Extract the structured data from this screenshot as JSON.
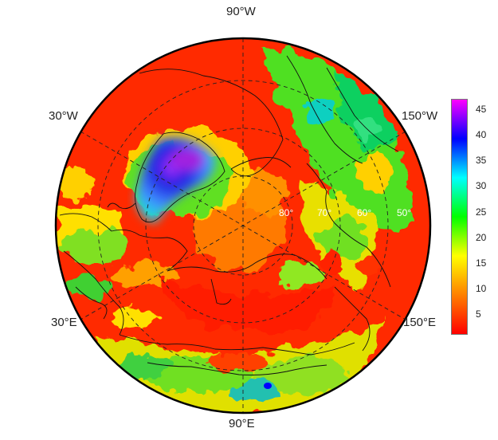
{
  "map": {
    "projection": "north-polar-stereographic",
    "longitude_labels": [
      "90°W",
      "30°W",
      "150°W",
      "30°E",
      "150°E",
      "90°E"
    ],
    "latitude_labels": [
      "80°",
      "70°",
      "60°",
      "50°"
    ],
    "colorbar": {
      "ticks": [
        "5",
        "10",
        "15",
        "20",
        "25",
        "30",
        "35",
        "40",
        "45"
      ],
      "range": [
        1,
        47
      ],
      "palette": "rainbow",
      "colors": {
        "low": "#ff0000",
        "orange": "#ff8000",
        "yellow": "#ffff00",
        "green": "#00ff00",
        "cyan": "#00ffff",
        "blue": "#0000ff",
        "high": "#ff00ff"
      }
    }
  }
}
